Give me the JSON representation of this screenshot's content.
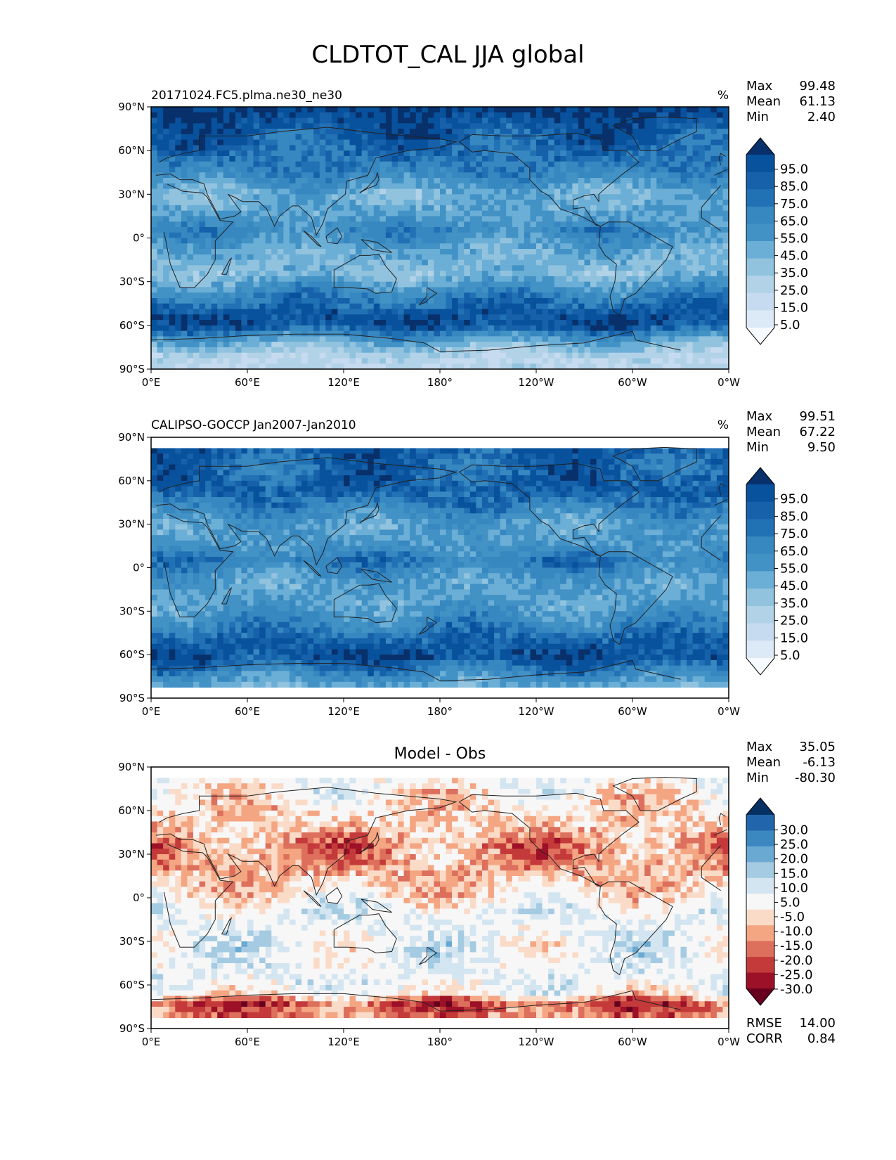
{
  "figure": {
    "title": "CLDTOT_CAL JJA global"
  },
  "chart_data": [
    {
      "type": "heatmap",
      "panel": "test",
      "title_left": "20171024.FC5.plma.ne30_ne30",
      "title_center": "",
      "units": "%",
      "stats": [
        {
          "label": "Max",
          "value": "99.48"
        },
        {
          "label": "Mean",
          "value": "61.13"
        },
        {
          "label": "Min",
          "value": "2.40"
        }
      ],
      "extra_stats": [],
      "x_ticks": [
        "0°E",
        "60°E",
        "120°E",
        "180°",
        "120°W",
        "60°W",
        "0°W"
      ],
      "y_ticks": [
        "90°N",
        "60°N",
        "30°N",
        "0°",
        "30°S",
        "60°S",
        "90°S"
      ],
      "colorbar": {
        "colormap": "Blues",
        "extend": "both",
        "ticks": [
          "95.0",
          "85.0",
          "75.0",
          "65.0",
          "55.0",
          "45.0",
          "35.0",
          "25.0",
          "15.0",
          "5.0"
        ],
        "colors": [
          "#08306b",
          "#08519c",
          "#1661aa",
          "#2171b5",
          "#3787c0",
          "#4292c6",
          "#6baed6",
          "#91c3de",
          "#b2d2e8",
          "#c6dbef",
          "#dce9f6",
          "#f7fbff"
        ]
      },
      "zonal_profile": [
        {
          "lat": 90,
          "v": 97
        },
        {
          "lat": 75,
          "v": 86
        },
        {
          "lat": 60,
          "v": 80
        },
        {
          "lat": 45,
          "v": 70
        },
        {
          "lat": 30,
          "v": 48
        },
        {
          "lat": 15,
          "v": 55
        },
        {
          "lat": 5,
          "v": 68
        },
        {
          "lat": -10,
          "v": 50
        },
        {
          "lat": -25,
          "v": 45
        },
        {
          "lat": -40,
          "v": 72
        },
        {
          "lat": -52,
          "v": 88
        },
        {
          "lat": -60,
          "v": 90
        },
        {
          "lat": -70,
          "v": 55
        },
        {
          "lat": -80,
          "v": 30
        },
        {
          "lat": -90,
          "v": 25
        }
      ]
    },
    {
      "type": "heatmap",
      "panel": "reference",
      "title_left": "CALIPSO-GOCCP Jan2007-Jan2010",
      "title_center": "",
      "units": "%",
      "stats": [
        {
          "label": "Max",
          "value": "99.51"
        },
        {
          "label": "Mean",
          "value": "67.22"
        },
        {
          "label": "Min",
          "value": "9.50"
        }
      ],
      "extra_stats": [],
      "x_ticks": [
        "0°E",
        "60°E",
        "120°E",
        "180°",
        "120°W",
        "60°W",
        "0°W"
      ],
      "y_ticks": [
        "90°N",
        "60°N",
        "30°N",
        "0°",
        "30°S",
        "60°S",
        "90°S"
      ],
      "data_lat_range": [
        -82,
        82
      ],
      "colorbar": {
        "colormap": "Blues",
        "extend": "both",
        "ticks": [
          "95.0",
          "85.0",
          "75.0",
          "65.0",
          "55.0",
          "45.0",
          "35.0",
          "25.0",
          "15.0",
          "5.0"
        ],
        "colors": [
          "#08306b",
          "#08519c",
          "#1661aa",
          "#2171b5",
          "#3787c0",
          "#4292c6",
          "#6baed6",
          "#91c3de",
          "#b2d2e8",
          "#c6dbef",
          "#dce9f6",
          "#f7fbff"
        ]
      },
      "zonal_profile": [
        {
          "lat": 82,
          "v": 85
        },
        {
          "lat": 70,
          "v": 80
        },
        {
          "lat": 55,
          "v": 85
        },
        {
          "lat": 45,
          "v": 75
        },
        {
          "lat": 30,
          "v": 55
        },
        {
          "lat": 15,
          "v": 60
        },
        {
          "lat": 5,
          "v": 75
        },
        {
          "lat": -10,
          "v": 55
        },
        {
          "lat": -25,
          "v": 55
        },
        {
          "lat": -40,
          "v": 70
        },
        {
          "lat": -52,
          "v": 85
        },
        {
          "lat": -62,
          "v": 90
        },
        {
          "lat": -72,
          "v": 70
        },
        {
          "lat": -82,
          "v": 50
        }
      ]
    },
    {
      "type": "heatmap",
      "panel": "difference",
      "title_left": "",
      "title_center": "Model - Obs",
      "units": "",
      "stats": [
        {
          "label": "Max",
          "value": "35.05"
        },
        {
          "label": "Mean",
          "value": "-6.13"
        },
        {
          "label": "Min",
          "value": "-80.30"
        }
      ],
      "extra_stats": [
        {
          "label": "RMSE",
          "value": "14.00"
        },
        {
          "label": "CORR",
          "value": "0.84"
        }
      ],
      "x_ticks": [
        "0°E",
        "60°E",
        "120°E",
        "180°",
        "120°W",
        "60°W",
        "0°W"
      ],
      "y_ticks": [
        "90°N",
        "60°N",
        "30°N",
        "0°",
        "30°S",
        "60°S",
        "90°S"
      ],
      "data_lat_range": [
        -82,
        82
      ],
      "colorbar": {
        "colormap": "RdBu",
        "extend": "both",
        "ticks": [
          "30.0",
          "25.0",
          "20.0",
          "15.0",
          "10.0",
          "5.0",
          "-5.0",
          "-10.0",
          "-15.0",
          "-20.0",
          "-25.0",
          "-30.0"
        ],
        "colors": [
          "#053061",
          "#2166ac",
          "#3b87c0",
          "#6aaad2",
          "#a4cbe2",
          "#d3e5f0",
          "#f7f7f7",
          "#fadbc8",
          "#f4a582",
          "#dd6f5d",
          "#c43a3a",
          "#9c1127",
          "#67001f"
        ]
      },
      "zonal_profile": [
        {
          "lat": 82,
          "v": 0
        },
        {
          "lat": 65,
          "v": -5
        },
        {
          "lat": 50,
          "v": -8
        },
        {
          "lat": 35,
          "v": -15
        },
        {
          "lat": 20,
          "v": -12
        },
        {
          "lat": 5,
          "v": -6
        },
        {
          "lat": -10,
          "v": 3
        },
        {
          "lat": -25,
          "v": 3
        },
        {
          "lat": -40,
          "v": 2
        },
        {
          "lat": -55,
          "v": 3
        },
        {
          "lat": -65,
          "v": 0
        },
        {
          "lat": -72,
          "v": -20
        },
        {
          "lat": -82,
          "v": -15
        }
      ]
    }
  ]
}
